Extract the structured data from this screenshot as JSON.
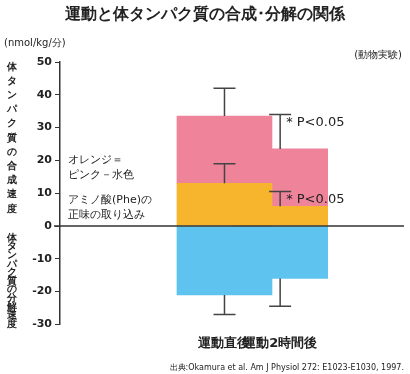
{
  "chart_data": {
    "type": "bar",
    "title": "運動と体タンパク質の合成･分解の関係",
    "subtitle": "(動物実験)",
    "y_unit": "(nmol/kg/分)",
    "y_labels": [
      "体タンパク質の合成速度",
      "体タンパク質の分解速度"
    ],
    "annotations": [
      "オレンジ＝",
      "ピンク－水色",
      "アミノ酸(Phe)の",
      "正味の取り込み"
    ],
    "source": "出典:Okamura et al. Am J Physiol 272: E1023-E1030, 1997.",
    "categories": [
      "運動直後",
      "運動2時間後"
    ],
    "stacked": true,
    "grid": false,
    "ylim": [
      -30,
      50
    ],
    "yticks": [
      -30,
      -20,
      -10,
      0,
      10,
      20,
      30,
      40,
      50
    ],
    "series": [
      {
        "color": "#f7b52d",
        "values": [
          13,
          6
        ],
        "errors": [
          6,
          4.5
        ],
        "annotations": [
          null,
          "* P<0.05"
        ]
      },
      {
        "color": "#ee8399",
        "values": [
          20.5,
          17.5
        ],
        "errors": [
          8.5,
          10.5
        ],
        "annotations": [
          null,
          "* P<0.05"
        ]
      },
      {
        "color": "#5ec3ee",
        "values": [
          -21,
          -16
        ],
        "errors": [
          6,
          8.5
        ]
      }
    ]
  }
}
